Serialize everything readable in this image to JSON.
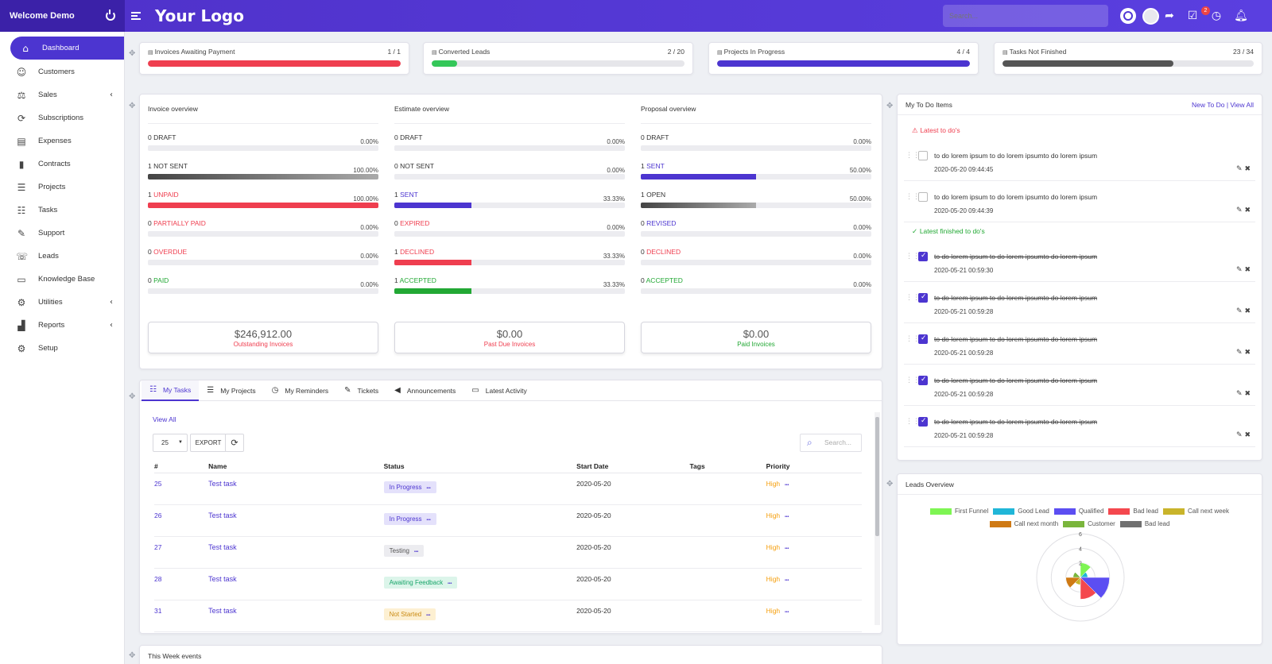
{
  "brand": {
    "welcome": "Welcome Demo",
    "logo": "Your Logo"
  },
  "topbar": {
    "search_placeholder": "Search...",
    "notification_count": "2",
    "icons": [
      "search-icon",
      "avatar",
      "share-icon",
      "tasks-icon",
      "clock-icon",
      "bell-icon"
    ]
  },
  "sidebar": {
    "items": [
      {
        "label": "Dashboard",
        "icon": "home-icon",
        "active": true
      },
      {
        "label": "Customers",
        "icon": "user-icon"
      },
      {
        "label": "Sales",
        "icon": "balance-icon",
        "chevron": true
      },
      {
        "label": "Subscriptions",
        "icon": "refresh-icon"
      },
      {
        "label": "Expenses",
        "icon": "file-text-icon"
      },
      {
        "label": "Contracts",
        "icon": "file-icon"
      },
      {
        "label": "Projects",
        "icon": "bars-icon"
      },
      {
        "label": "Tasks",
        "icon": "tasks-icon"
      },
      {
        "label": "Support",
        "icon": "ticket-icon"
      },
      {
        "label": "Leads",
        "icon": "tty-icon"
      },
      {
        "label": "Knowledge Base",
        "icon": "folder-icon"
      },
      {
        "label": "Utilities",
        "icon": "cogs-icon",
        "chevron": true
      },
      {
        "label": "Reports",
        "icon": "chart-icon",
        "chevron": true
      },
      {
        "label": "Setup",
        "icon": "gear-icon"
      }
    ]
  },
  "stats": [
    {
      "label": "Invoices Awaiting Payment",
      "value": "1 / 1",
      "fill": 1.0,
      "color": "#ef3e4f"
    },
    {
      "label": "Converted Leads",
      "value": "2 / 20",
      "fill": 0.1,
      "color": "#34c759"
    },
    {
      "label": "Projects In Progress",
      "value": "4 / 4",
      "fill": 1.0,
      "color": "#4c35d0"
    },
    {
      "label": "Tasks Not Finished",
      "value": "23 / 34",
      "fill": 0.68,
      "color": "#555555"
    }
  ],
  "overview": {
    "invoice": {
      "title": "Invoice overview",
      "rows": [
        {
          "count": "0",
          "label": "DRAFT",
          "pct": "0.00%",
          "fill": 0,
          "color": "#333333",
          "bar": "#555555"
        },
        {
          "count": "1",
          "label": "NOT SENT",
          "pct": "100.00%",
          "fill": 1,
          "color": "#333333",
          "bar": "#555555"
        },
        {
          "count": "1",
          "label": "UNPAID",
          "pct": "100.00%",
          "fill": 1,
          "color": "#ef3e4f",
          "bar": "#ef3e4f"
        },
        {
          "count": "0",
          "label": "PARTIALLY PAID",
          "pct": "0.00%",
          "fill": 0,
          "color": "#ef3e4f",
          "bar": "#ef3e4f"
        },
        {
          "count": "0",
          "label": "OVERDUE",
          "pct": "0.00%",
          "fill": 0,
          "color": "#ef3e4f",
          "bar": "#ef3e4f"
        },
        {
          "count": "0",
          "label": "PAID",
          "pct": "0.00%",
          "fill": 0,
          "color": "#22a834",
          "bar": "#22a834"
        }
      ],
      "summary": {
        "amount": "$246,912.00",
        "label": "Outstanding Invoices",
        "color": "#ef3e4f"
      }
    },
    "estimate": {
      "title": "Estimate overview",
      "rows": [
        {
          "count": "0",
          "label": "DRAFT",
          "pct": "0.00%",
          "fill": 0,
          "color": "#333333",
          "bar": "#555555"
        },
        {
          "count": "0",
          "label": "NOT SENT",
          "pct": "0.00%",
          "fill": 0,
          "color": "#333333",
          "bar": "#555555"
        },
        {
          "count": "1",
          "label": "SENT",
          "pct": "33.33%",
          "fill": 0.3333,
          "color": "#4c35d0",
          "bar": "#4c35d0"
        },
        {
          "count": "0",
          "label": "EXPIRED",
          "pct": "0.00%",
          "fill": 0,
          "color": "#ef3e4f",
          "bar": "#ef3e4f"
        },
        {
          "count": "1",
          "label": "DECLINED",
          "pct": "33.33%",
          "fill": 0.3333,
          "color": "#ef3e4f",
          "bar": "#ef3e4f"
        },
        {
          "count": "1",
          "label": "ACCEPTED",
          "pct": "33.33%",
          "fill": 0.3333,
          "color": "#22a834",
          "bar": "#22a834"
        }
      ],
      "summary": {
        "amount": "$0.00",
        "label": "Past Due Invoices",
        "color": "#ef3e4f"
      }
    },
    "proposal": {
      "title": "Proposal overview",
      "rows": [
        {
          "count": "0",
          "label": "DRAFT",
          "pct": "0.00%",
          "fill": 0,
          "color": "#333333",
          "bar": "#555555"
        },
        {
          "count": "1",
          "label": "SENT",
          "pct": "50.00%",
          "fill": 0.5,
          "color": "#4c35d0",
          "bar": "#4c35d0"
        },
        {
          "count": "1",
          "label": "OPEN",
          "pct": "50.00%",
          "fill": 0.5,
          "color": "#333333",
          "bar": "#555555"
        },
        {
          "count": "0",
          "label": "REVISED",
          "pct": "0.00%",
          "fill": 0,
          "color": "#4c35d0",
          "bar": "#4c35d0"
        },
        {
          "count": "0",
          "label": "DECLINED",
          "pct": "0.00%",
          "fill": 0,
          "color": "#ef3e4f",
          "bar": "#ef3e4f"
        },
        {
          "count": "0",
          "label": "ACCEPTED",
          "pct": "0.00%",
          "fill": 0,
          "color": "#22a834",
          "bar": "#22a834"
        }
      ],
      "summary": {
        "amount": "$0.00",
        "label": "Paid Invoices",
        "color": "#22a834"
      }
    }
  },
  "tasks_widget": {
    "tabs": [
      {
        "label": "My Tasks",
        "icon": "tasks-icon",
        "active": true
      },
      {
        "label": "My Projects",
        "icon": "bars-icon"
      },
      {
        "label": "My Reminders",
        "icon": "clock-icon"
      },
      {
        "label": "Tickets",
        "icon": "ticket-icon"
      },
      {
        "label": "Announcements",
        "icon": "bullhorn-icon"
      },
      {
        "label": "Latest Activity",
        "icon": "window-icon"
      }
    ],
    "view_all": "View All",
    "page_size": "25",
    "export": "EXPORT",
    "search_placeholder": "Search...",
    "columns": [
      "#",
      "Name",
      "Status",
      "Start Date",
      "Tags",
      "Priority"
    ],
    "rows": [
      {
        "id": "25",
        "name": "Test task",
        "status": "In Progress",
        "status_bg": "#e4e1fb",
        "status_color": "#4c35d0",
        "start": "2020-05-20",
        "tags": "",
        "priority": "High"
      },
      {
        "id": "26",
        "name": "Test task",
        "status": "In Progress",
        "status_bg": "#e4e1fb",
        "status_color": "#4c35d0",
        "start": "2020-05-20",
        "tags": "",
        "priority": "High"
      },
      {
        "id": "27",
        "name": "Test task",
        "status": "Testing",
        "status_bg": "#ececf0",
        "status_color": "#555555",
        "start": "2020-05-20",
        "tags": "",
        "priority": "High"
      },
      {
        "id": "28",
        "name": "Test task",
        "status": "Awaiting Feedback",
        "status_bg": "#dcf5ea",
        "status_color": "#19a56a",
        "start": "2020-05-20",
        "tags": "",
        "priority": "High"
      },
      {
        "id": "31",
        "name": "Test task",
        "status": "Not Started",
        "status_bg": "#fdf0d2",
        "status_color": "#c98a12",
        "start": "2020-05-20",
        "tags": "",
        "priority": "High"
      }
    ]
  },
  "events": {
    "title": "This Week events"
  },
  "todo": {
    "title": "My To Do Items",
    "new_link": "New To Do",
    "view_all": "View All",
    "latest_label": "Latest to do's",
    "finished_label": "Latest finished to do's",
    "latest": [
      {
        "text": "to do lorem ipsum to do lorem ipsumto do lorem ipsum",
        "date": "2020-05-20 09:44:45"
      },
      {
        "text": "to do lorem ipsum to do lorem ipsumto do lorem ipsum",
        "date": "2020-05-20 09:44:39"
      }
    ],
    "finished": [
      {
        "text": "to do lorem ipsum to do lorem ipsumto do lorem ipsum",
        "date": "2020-05-21 00:59:30"
      },
      {
        "text": "to do lorem ipsum to do lorem ipsumto do lorem ipsum",
        "date": "2020-05-21 00:59:28"
      },
      {
        "text": "to do lorem ipsum to do lorem ipsumto do lorem ipsum",
        "date": "2020-05-21 00:59:28"
      },
      {
        "text": "to do lorem ipsum to do lorem ipsumto do lorem ipsum",
        "date": "2020-05-21 00:59:28"
      },
      {
        "text": "to do lorem ipsum to do lorem ipsumto do lorem ipsum",
        "date": "2020-05-21 00:59:28"
      }
    ]
  },
  "leads_overview": {
    "title": "Leads Overview"
  },
  "chart_data": {
    "type": "polar-area",
    "categories": [
      "First Funnel",
      "Good Lead",
      "Qualified",
      "Bad lead",
      "Call next week",
      "Call next month",
      "Customer",
      "Bad lead"
    ],
    "values": [
      2,
      1,
      4,
      3,
      1,
      2,
      1,
      0
    ],
    "colors": [
      "#7ef553",
      "#20b6d8",
      "#5c4ef2",
      "#f4484e",
      "#c9b42b",
      "#cf7a14",
      "#7ab53c",
      "#707070"
    ],
    "rlim": [
      0,
      6
    ],
    "ticks": [
      "6",
      "4",
      "2"
    ],
    "legend_position": "top",
    "grid": true
  }
}
